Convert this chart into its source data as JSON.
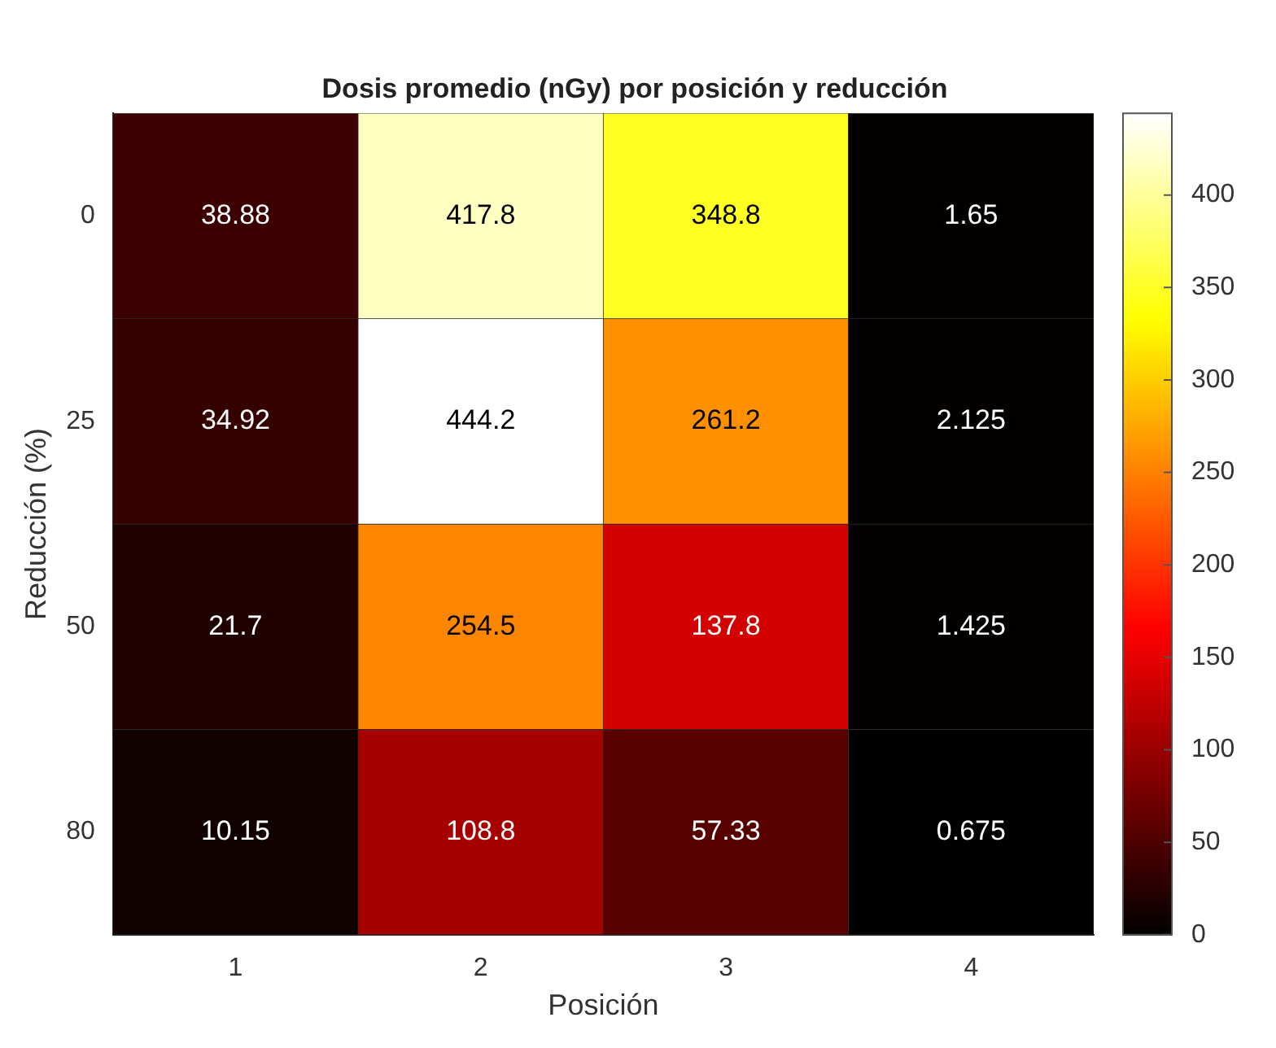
{
  "chart_data": {
    "type": "heatmap",
    "title": "Dosis promedio (nGy) por posición y reducción",
    "xlabel": "Posición",
    "ylabel": "Reducción (%)",
    "categories": [
      "1",
      "2",
      "3",
      "4"
    ],
    "y_categories": [
      "0",
      "25",
      "50",
      "80"
    ],
    "cells": [
      [
        38.88,
        417.8,
        348.8,
        1.65
      ],
      [
        34.92,
        444.2,
        261.2,
        2.125
      ],
      [
        21.7,
        254.5,
        137.8,
        1.425
      ],
      [
        10.15,
        108.8,
        57.33,
        0.675
      ]
    ],
    "data_labels": true,
    "clim": [
      0,
      444.2
    ],
    "cticks": [
      0,
      50,
      100,
      150,
      200,
      250,
      300,
      350,
      400
    ]
  }
}
